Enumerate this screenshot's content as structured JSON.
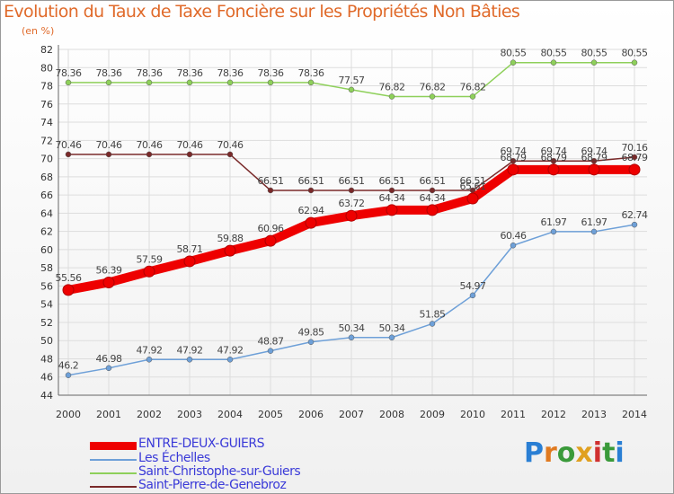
{
  "colors": {
    "title": "#e06a2a",
    "grid": "#dddddd",
    "axis": "#666666",
    "legend_text": "#3a3ad8"
  },
  "chart_data": {
    "type": "line",
    "title": "Evolution du Taux de Taxe Foncière sur les Propriétés Non Bâties",
    "subtitle": "(en %)",
    "xlabel": "",
    "ylabel": "",
    "ylim": [
      44,
      82
    ],
    "ytick_step": 2,
    "grid": true,
    "x": [
      2000,
      2001,
      2002,
      2003,
      2004,
      2005,
      2006,
      2007,
      2008,
      2009,
      2010,
      2011,
      2012,
      2013,
      2014
    ],
    "series": [
      {
        "name": "ENTRE-DEUX-GUIERS",
        "color": "#ee0000",
        "width": 10,
        "marker": 6,
        "label_color": "#444444",
        "values": [
          55.56,
          56.39,
          57.59,
          58.71,
          59.88,
          60.96,
          62.94,
          63.72,
          64.34,
          64.34,
          65.61,
          68.79,
          68.79,
          68.79,
          68.79
        ]
      },
      {
        "name": "Les Échelles",
        "color": "#6ea0d8",
        "width": 1.5,
        "marker": 3,
        "label_color": "#444444",
        "values": [
          46.2,
          46.98,
          47.92,
          47.92,
          47.92,
          48.87,
          49.85,
          50.34,
          50.34,
          51.85,
          54.97,
          60.46,
          61.97,
          61.97,
          62.74
        ]
      },
      {
        "name": "Saint-Christophe-sur-Guiers",
        "color": "#8ed05a",
        "width": 1.5,
        "marker": 3,
        "label_color": "#444444",
        "values": [
          78.36,
          78.36,
          78.36,
          78.36,
          78.36,
          78.36,
          78.36,
          77.57,
          76.82,
          76.82,
          76.82,
          80.55,
          80.55,
          80.55,
          80.55
        ]
      },
      {
        "name": "Saint-Pierre-de-Genebroz",
        "color": "#7a2a2a",
        "width": 1.5,
        "marker": 3,
        "label_color": "#444444",
        "values": [
          70.46,
          70.46,
          70.46,
          70.46,
          70.46,
          66.51,
          66.51,
          66.51,
          66.51,
          66.51,
          66.51,
          69.74,
          69.74,
          69.74,
          70.16
        ]
      }
    ]
  },
  "logo": {
    "text": "Prox i ti"
  }
}
